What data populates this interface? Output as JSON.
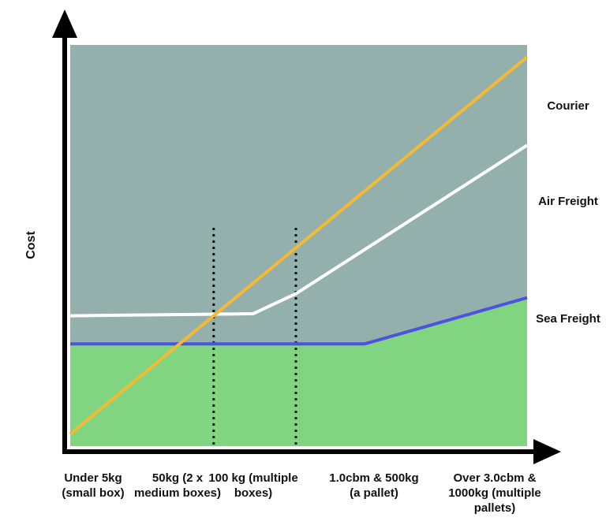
{
  "chart_data": {
    "type": "line",
    "title": "",
    "xlabel": "",
    "ylabel": "Cost",
    "categories": [
      "Under 5kg (small box)",
      "50kg (2 x medium boxes)",
      "100 kg (multiple boxes)",
      "1.0cbm & 500kg (a pallet)",
      "Over 3.0cbm & 1000kg (multiple pallets)"
    ],
    "category_lines": [
      [
        "Under 5kg",
        "(small box)"
      ],
      [
        "50kg (2 x",
        "medium boxes)"
      ],
      [
        "100 kg (multiple",
        "boxes)"
      ],
      [
        "1.0cbm & 500kg",
        "(a pallet)"
      ],
      [
        "Over 3.0cbm &",
        "1000kg (multiple",
        "pallets)"
      ]
    ],
    "x_range": [
      0,
      100
    ],
    "ylim": [
      0,
      100
    ],
    "grid": false,
    "vlines": [
      31.4,
      49.4
    ],
    "series": [
      {
        "name": "Courier",
        "color": "#f5b932",
        "width": 4,
        "x": [
          0,
          100
        ],
        "y": [
          3,
          97
        ]
      },
      {
        "name": "Air Freight",
        "color": "#ffffff",
        "width": 4,
        "x": [
          0,
          40,
          49.4,
          100
        ],
        "y": [
          32.5,
          33,
          38,
          75
        ]
      },
      {
        "name": "Sea Freight",
        "color": "#4d52e0",
        "width": 4,
        "x": [
          0,
          64.5,
          100
        ],
        "y": [
          25.5,
          25.5,
          37
        ]
      }
    ],
    "region_colors": {
      "upper": "#93b0ad",
      "lower": "#82d580"
    },
    "series_labels": [
      "Courier",
      "Air Freight",
      "Sea Freight"
    ]
  }
}
